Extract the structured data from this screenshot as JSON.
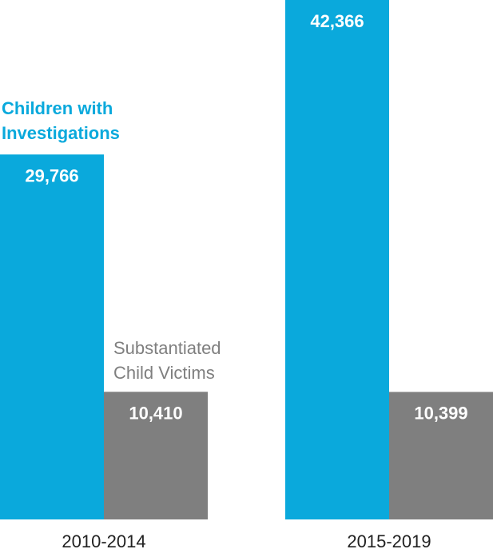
{
  "chart_data": {
    "type": "bar",
    "categories": [
      "2010-2014",
      "2015-2019"
    ],
    "series": [
      {
        "name": "Children with Investigations",
        "color": "#0aa9dc",
        "values": [
          29766,
          42366
        ]
      },
      {
        "name": "Substantiated Child Victims",
        "color": "#7f7f7f",
        "values": [
          10410,
          10399
        ]
      }
    ],
    "value_labels": [
      [
        "29,766",
        "42,366"
      ],
      [
        "10,410",
        "10,399"
      ]
    ],
    "legend": {
      "blue_line1": "Children with",
      "blue_line2": "Investigations",
      "gray_line1": "Substantiated",
      "gray_line2": "Child Victims"
    },
    "ylim": [
      0,
      42366
    ],
    "grid": false
  }
}
